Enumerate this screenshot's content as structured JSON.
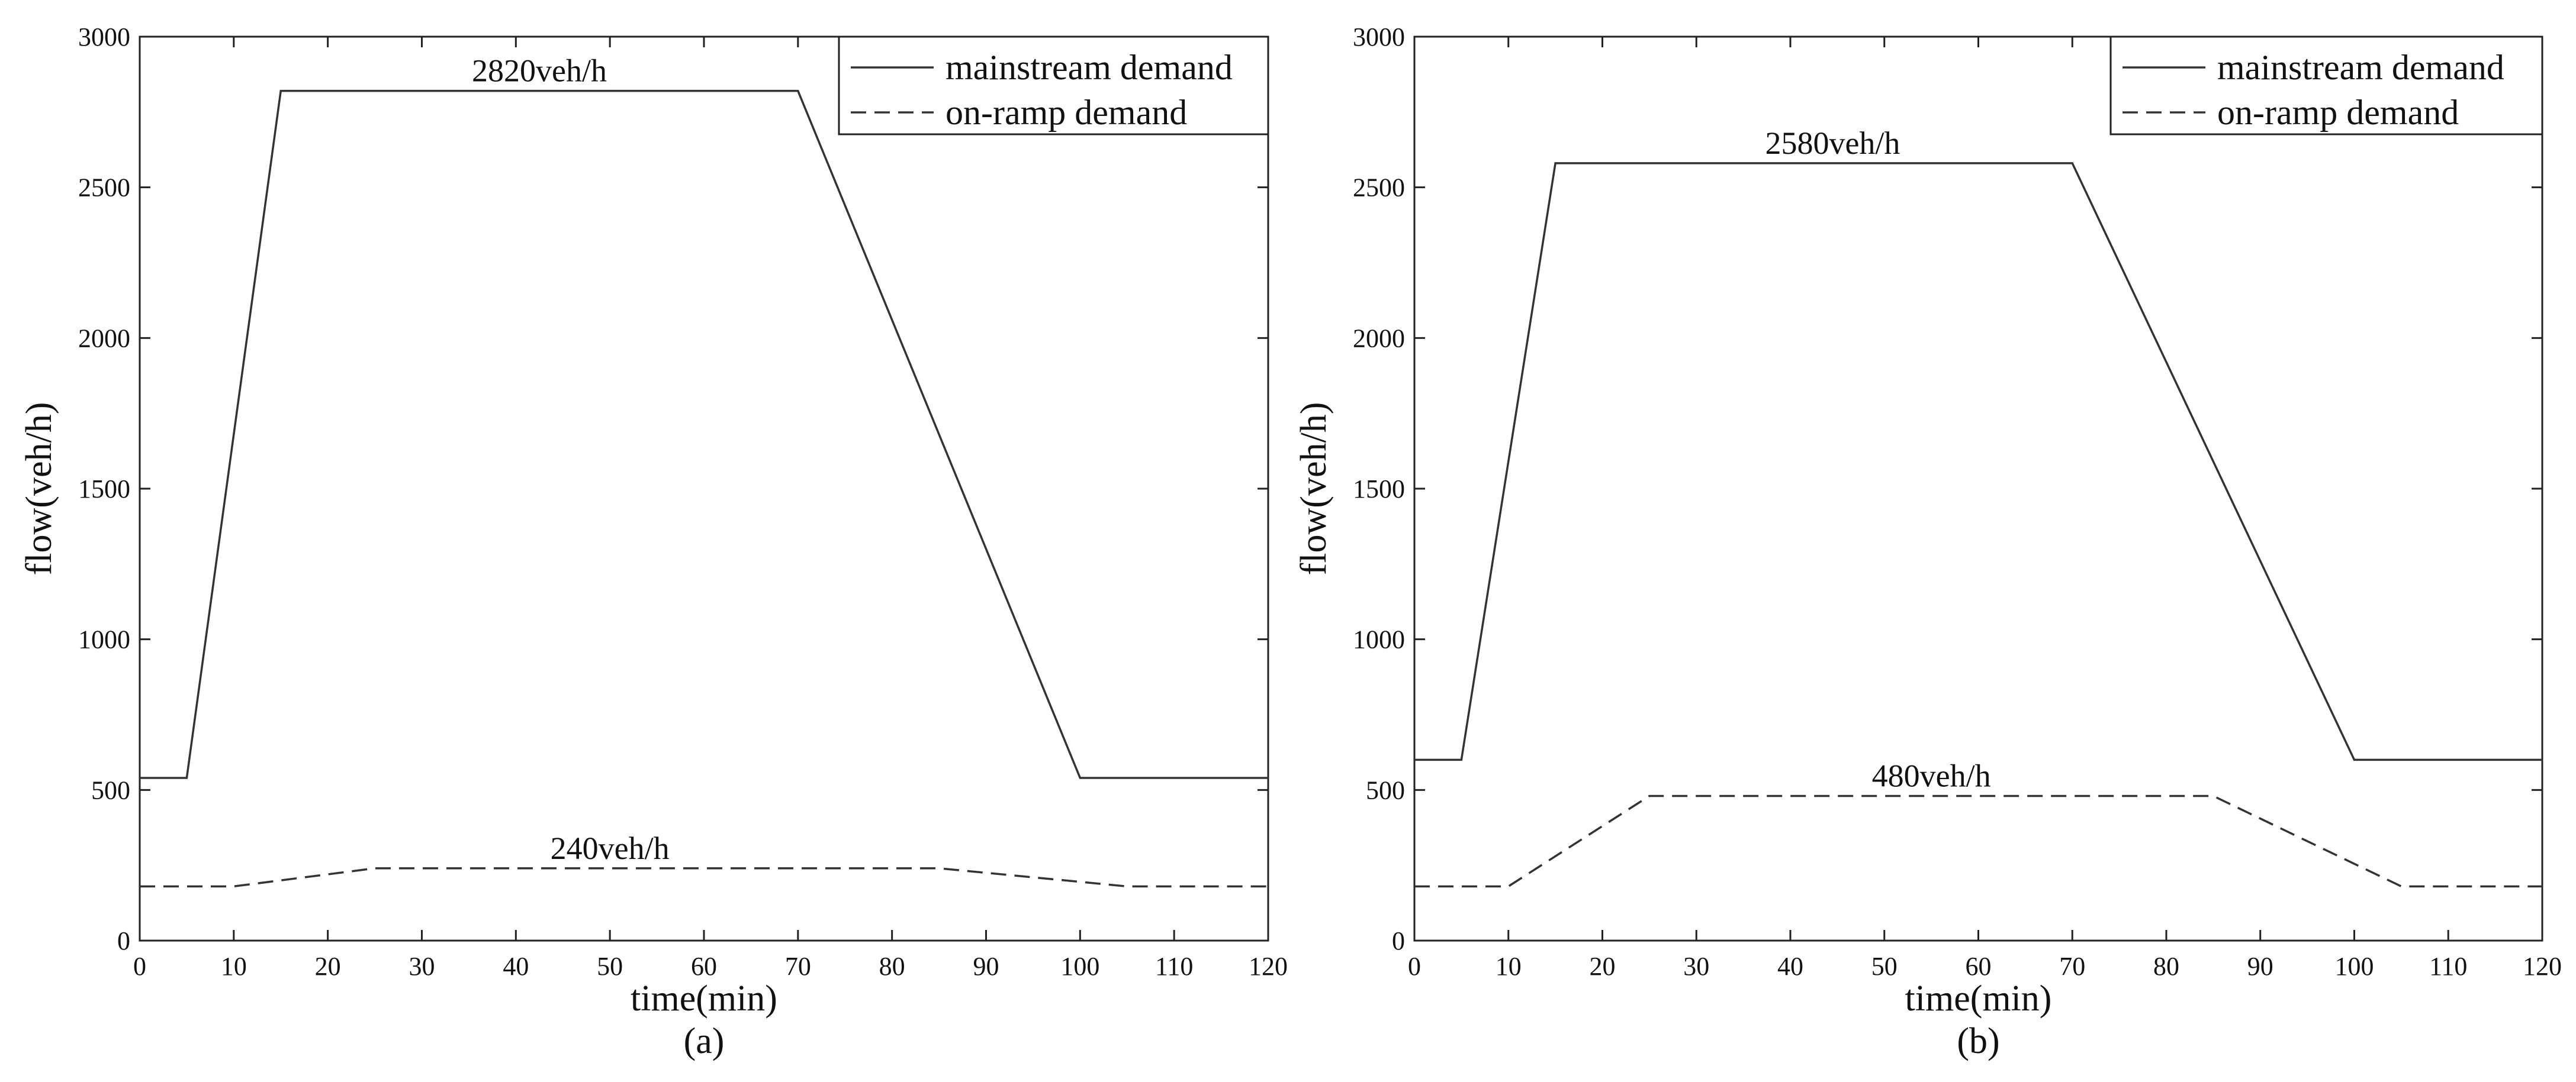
{
  "chart_data": [
    {
      "panel": "(a)",
      "type": "line",
      "xlabel": "time(min)",
      "ylabel": "flow(veh/h)",
      "xlim": [
        0,
        120
      ],
      "ylim": [
        0,
        3000
      ],
      "xticks": [
        0,
        10,
        20,
        30,
        40,
        50,
        60,
        70,
        80,
        90,
        100,
        110,
        120
      ],
      "yticks": [
        0,
        500,
        1000,
        1500,
        2000,
        2500,
        3000
      ],
      "grid": false,
      "legend_position": "top-right",
      "series": [
        {
          "name": "mainstream demand",
          "style": "solid",
          "x": [
            0,
            5,
            15,
            70,
            100,
            120
          ],
          "y": [
            540,
            540,
            2820,
            2820,
            540,
            540
          ]
        },
        {
          "name": "on-ramp demand",
          "style": "dashed",
          "x": [
            0,
            10,
            25,
            85,
            105,
            120
          ],
          "y": [
            180,
            180,
            240,
            240,
            180,
            180
          ]
        }
      ],
      "annotations": [
        {
          "text": "2820veh/h",
          "x": 42.5,
          "y": 2820
        },
        {
          "text": "240veh/h",
          "x": 50,
          "y": 240
        }
      ]
    },
    {
      "panel": "(b)",
      "type": "line",
      "xlabel": "time(min)",
      "ylabel": "flow(veh/h)",
      "xlim": [
        0,
        120
      ],
      "ylim": [
        0,
        3000
      ],
      "xticks": [
        0,
        10,
        20,
        30,
        40,
        50,
        60,
        70,
        80,
        90,
        100,
        110,
        120
      ],
      "yticks": [
        0,
        500,
        1000,
        1500,
        2000,
        2500,
        3000
      ],
      "grid": false,
      "legend_position": "top-right",
      "series": [
        {
          "name": "mainstream demand",
          "style": "solid",
          "x": [
            0,
            5,
            15,
            70,
            100,
            120
          ],
          "y": [
            600,
            600,
            2580,
            2580,
            600,
            600
          ]
        },
        {
          "name": "on-ramp demand",
          "style": "dashed",
          "x": [
            0,
            10,
            25,
            85,
            105,
            120
          ],
          "y": [
            180,
            180,
            480,
            480,
            180,
            180
          ]
        }
      ],
      "annotations": [
        {
          "text": "2580veh/h",
          "x": 44.5,
          "y": 2580
        },
        {
          "text": "480veh/h",
          "x": 55,
          "y": 480
        }
      ]
    }
  ]
}
